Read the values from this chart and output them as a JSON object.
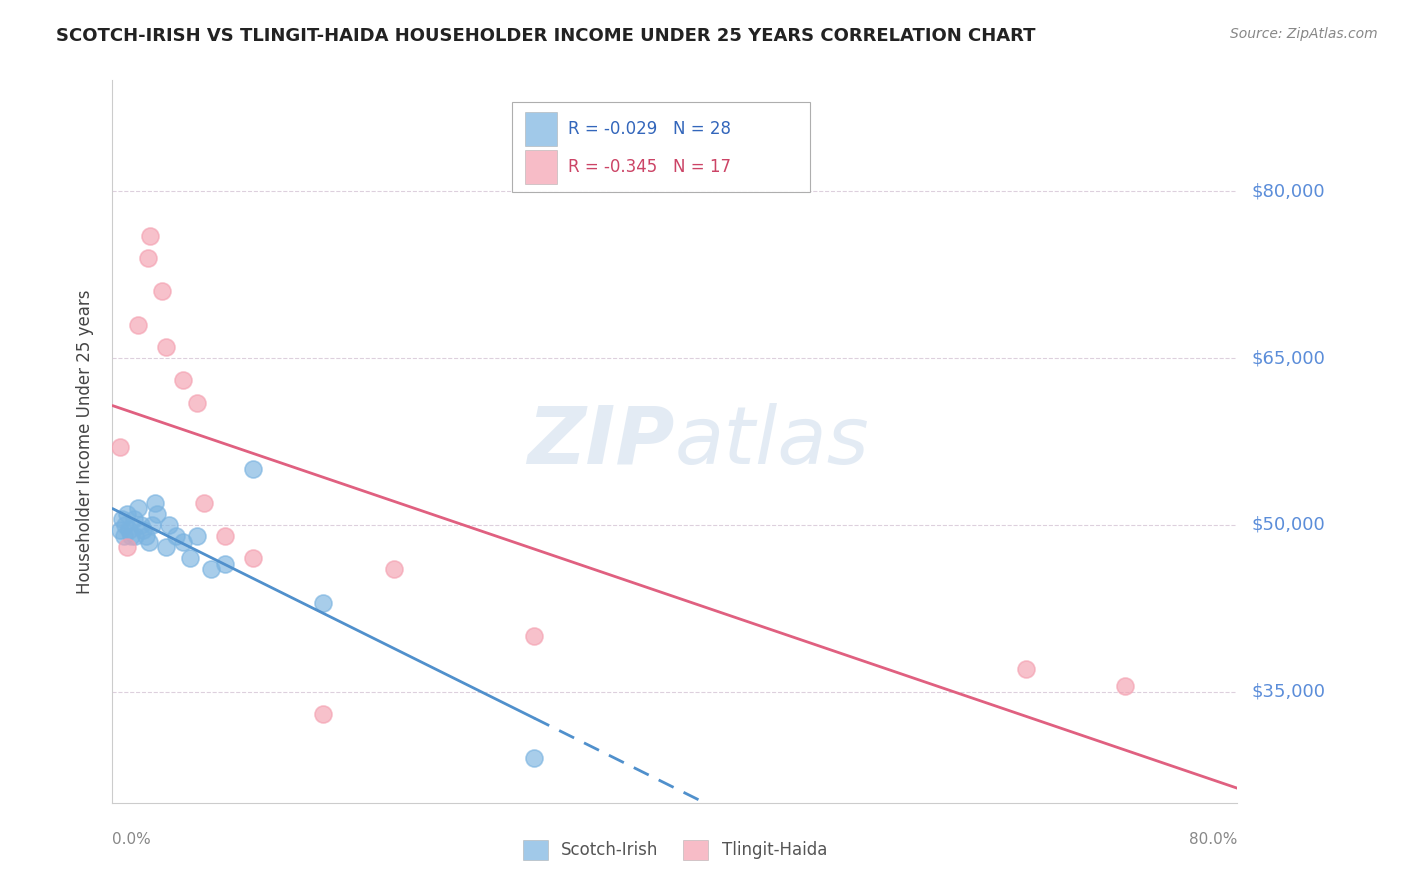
{
  "title": "SCOTCH-IRISH VS TLINGIT-HAIDA HOUSEHOLDER INCOME UNDER 25 YEARS CORRELATION CHART",
  "source": "Source: ZipAtlas.com",
  "ylabel": "Householder Income Under 25 years",
  "xmin": 0.0,
  "xmax": 0.8,
  "ymin": 25000,
  "ymax": 90000,
  "yticks": [
    35000,
    50000,
    65000,
    80000
  ],
  "ytick_labels": [
    "$35,000",
    "$50,000",
    "$65,000",
    "$80,000"
  ],
  "legend_entry_1": "R = -0.029   N = 28",
  "legend_entry_2": "R = -0.345   N = 17",
  "scotch_irish_color": "#7ab3e0",
  "tlingit_haida_color": "#f4a0b0",
  "si_line_color": "#5090cc",
  "th_line_color": "#e06080",
  "background_color": "#ffffff",
  "grid_color": "#ddd0dd",
  "watermark_color": "#c8d8ea",
  "scotch_irish_x": [
    0.005,
    0.007,
    0.008,
    0.009,
    0.01,
    0.012,
    0.013,
    0.015,
    0.016,
    0.018,
    0.02,
    0.022,
    0.024,
    0.026,
    0.028,
    0.03,
    0.032,
    0.038,
    0.04,
    0.045,
    0.05,
    0.055,
    0.06,
    0.07,
    0.08,
    0.1,
    0.15,
    0.3
  ],
  "scotch_irish_y": [
    49500,
    50500,
    49000,
    50000,
    51000,
    49500,
    49000,
    50500,
    49000,
    51500,
    50000,
    49500,
    49000,
    48500,
    50000,
    52000,
    51000,
    48000,
    50000,
    49000,
    48500,
    47000,
    49000,
    46000,
    46500,
    55000,
    43000,
    29000
  ],
  "tlingit_haida_x": [
    0.005,
    0.01,
    0.018,
    0.025,
    0.027,
    0.035,
    0.038,
    0.05,
    0.06,
    0.065,
    0.08,
    0.1,
    0.15,
    0.2,
    0.3,
    0.65,
    0.72
  ],
  "tlingit_haida_y": [
    57000,
    48000,
    68000,
    74000,
    76000,
    71000,
    66000,
    63000,
    61000,
    52000,
    49000,
    47000,
    33000,
    46000,
    40000,
    37000,
    35500
  ],
  "si_line_x_solid_end": 0.3,
  "si_line_x_dash_start": 0.3,
  "si_line_x_dash_end": 0.8
}
